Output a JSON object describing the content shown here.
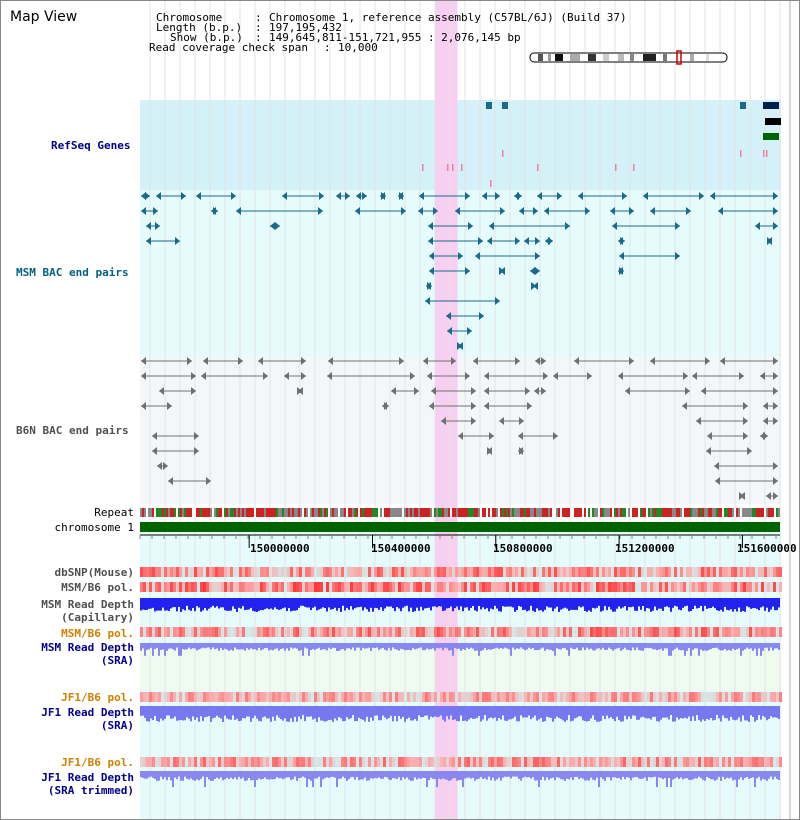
{
  "page": {
    "title": "Map View"
  },
  "header": {
    "rows": [
      {
        "key": "Chromosome",
        "value": "Chromosome 1, reference assembly (C57BL/6J) (Build 37)"
      },
      {
        "key": "Length (b.p.)",
        "value": "197,195,432"
      },
      {
        "key": "Show (b.p.)",
        "value": "149,645,811-151,721,955 : 2,076,145 bp"
      },
      {
        "key": "Read coverage check span",
        "value": "10,000"
      }
    ],
    "chromosome_label": "Chromosome",
    "length_label": "Length (b.p.)",
    "show_label": "Show (b.p.)",
    "span_label": "Read coverage check span",
    "chromosome_value": "Chromosome 1, reference assembly (C57BL/6J) (Build 37)",
    "length_value": "197,195,432",
    "show_value": "149,645,811-151,721,955 : 2,076,145 bp",
    "span_value": "10,000"
  },
  "tracks": {
    "refseq": "RefSeq Genes",
    "msm_bac": "MSM BAC end pairs",
    "b6n_bac": "B6N BAC end pairs",
    "repeat": "Repeat",
    "chromosome": "chromosome 1",
    "dbsnp": "dbSNP(Mouse)",
    "msm_b6_pol_1": "MSM/B6 pol.",
    "msm_read_depth_cap_1": "MSM Read Depth",
    "msm_read_depth_cap_2": "(Capillary)",
    "msm_b6_pol_2": "MSM/B6 pol.",
    "msm_read_depth_sra_1": "MSM Read Depth",
    "msm_read_depth_sra_2": "(SRA)",
    "jf1_b6_pol_1": "JF1/B6 pol.",
    "jf1_read_depth_sra_1": "JF1 Read Depth",
    "jf1_read_depth_sra_2": "(SRA)",
    "jf1_b6_pol_2": "JF1/B6 pol.",
    "jf1_read_depth_trim_1": "JF1 Read Depth",
    "jf1_read_depth_trim_2": "(SRA trimmed)"
  },
  "axis": {
    "start": 149645811,
    "end": 151721955,
    "ticks": [
      "150000000",
      "150400000",
      "150800000",
      "151200000",
      "151600000"
    ]
  },
  "highlight": {
    "region_start": 150602000,
    "region_end": 150676000
  },
  "colors": {
    "refseq_bg": "#d4f0f8",
    "msm_bg": "#e6fbfb",
    "b6n_bg": "#f4f7fa",
    "lower_bg": "#e6fbfb",
    "highlight": "#f7cff0",
    "refseq_label": "#000080",
    "msm_label": "#006080",
    "b6n_label": "#505050",
    "pol_orange": "#d08000",
    "depth_blue": "#000090",
    "chromosome_green": "#006400",
    "msm_feature": "#1a6a8a",
    "b6n_feature": "#707070",
    "gene_darkblue": "#00204a",
    "gene_green": "#006400",
    "pink_marker": "#f080a0"
  }
}
